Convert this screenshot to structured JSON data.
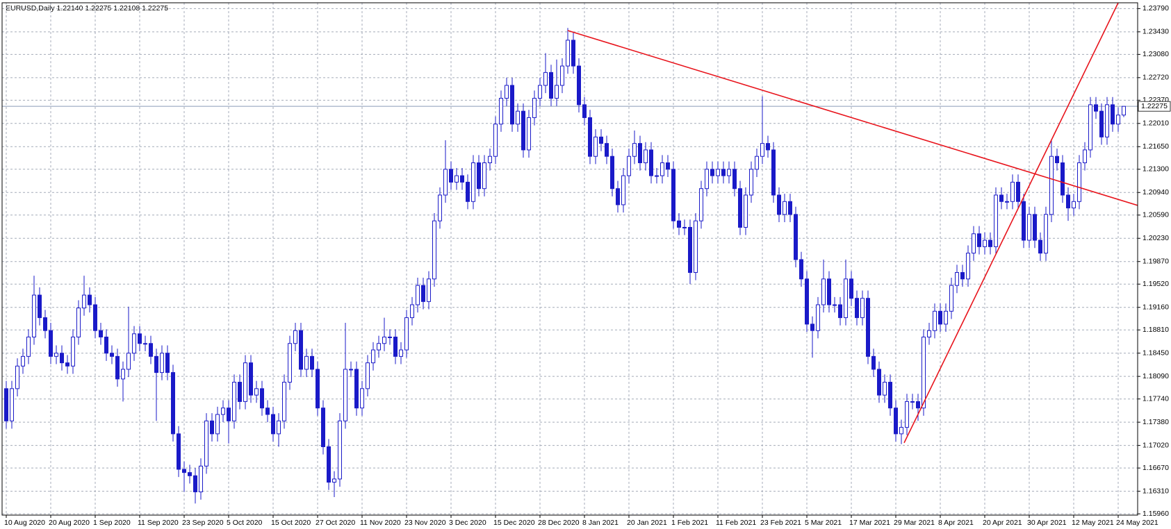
{
  "chart_data": {
    "type": "candlestick",
    "title": "EURUSD,Daily  1.22140 1.22275 1.22108 1.22275",
    "categories": [
      "10 Aug 2020",
      null,
      null,
      null,
      null,
      null,
      null,
      null,
      "20 Aug 2020",
      null,
      null,
      null,
      null,
      null,
      null,
      null,
      "1 Sep 2020",
      null,
      null,
      null,
      null,
      null,
      null,
      null,
      "11 Sep 2020",
      null,
      null,
      null,
      null,
      null,
      null,
      null,
      "23 Sep 2020",
      null,
      null,
      null,
      null,
      null,
      null,
      null,
      "5 Oct 2020",
      null,
      null,
      null,
      null,
      null,
      null,
      null,
      "15 Oct 2020",
      null,
      null,
      null,
      null,
      null,
      null,
      null,
      "27 Oct 2020",
      null,
      null,
      null,
      null,
      null,
      null,
      null,
      "11 Nov 2020",
      null,
      null,
      null,
      null,
      null,
      null,
      null,
      "23 Nov 2020",
      null,
      null,
      null,
      null,
      null,
      null,
      null,
      "3 Dec 2020",
      null,
      null,
      null,
      null,
      null,
      null,
      null,
      "15 Dec 2020",
      null,
      null,
      null,
      null,
      null,
      null,
      null,
      "28 Dec 2020",
      null,
      null,
      null,
      null,
      null,
      null,
      null,
      "8 Jan 2021",
      null,
      null,
      null,
      null,
      null,
      null,
      null,
      "20 Jan 2021",
      null,
      null,
      null,
      null,
      null,
      null,
      null,
      "1 Feb 2021",
      null,
      null,
      null,
      null,
      null,
      null,
      null,
      "11 Feb 2021",
      null,
      null,
      null,
      null,
      null,
      null,
      null,
      "23 Feb 2021",
      null,
      null,
      null,
      null,
      null,
      null,
      null,
      "5 Mar 2021",
      null,
      null,
      null,
      null,
      null,
      null,
      null,
      "17 Mar 2021",
      null,
      null,
      null,
      null,
      null,
      null,
      null,
      "29 Mar 2021",
      null,
      null,
      null,
      null,
      null,
      null,
      null,
      "8 Apr 2021",
      null,
      null,
      null,
      null,
      null,
      null,
      null,
      "20 Apr 2021",
      null,
      null,
      null,
      null,
      null,
      null,
      null,
      "30 Apr 2021",
      null,
      null,
      null,
      null,
      null,
      null,
      null,
      "12 May 2021",
      null,
      null,
      null,
      null,
      null,
      null,
      null,
      "24 May 2021",
      null
    ],
    "open": [
      1.179,
      1.174,
      1.179,
      1.1825,
      1.184,
      1.187,
      1.1935,
      1.19,
      1.188,
      1.184,
      1.1845,
      1.183,
      1.1825,
      1.187,
      1.1915,
      1.1935,
      1.192,
      1.188,
      1.187,
      1.1845,
      1.184,
      1.1805,
      1.182,
      1.1845,
      1.1875,
      1.186,
      1.186,
      1.184,
      1.1815,
      1.1845,
      1.1815,
      1.172,
      1.1665,
      1.166,
      1.1655,
      1.163,
      1.167,
      1.174,
      1.172,
      1.175,
      1.176,
      1.174,
      1.18,
      1.177,
      1.183,
      1.178,
      1.179,
      1.176,
      1.175,
      1.172,
      1.174,
      1.18,
      1.186,
      1.188,
      1.182,
      1.184,
      1.182,
      1.176,
      1.17,
      1.1645,
      1.165,
      1.174,
      1.182,
      1.182,
      1.176,
      1.179,
      1.183,
      1.185,
      1.186,
      1.187,
      1.187,
      1.184,
      1.185,
      1.19,
      1.192,
      1.195,
      1.1925,
      1.196,
      1.205,
      1.209,
      1.213,
      1.211,
      1.212,
      1.211,
      1.208,
      1.214,
      1.21,
      1.214,
      1.215,
      1.22,
      1.224,
      1.226,
      1.22,
      1.222,
      1.216,
      1.221,
      1.224,
      1.226,
      1.228,
      1.224,
      1.226,
      1.229,
      1.233,
      1.229,
      1.223,
      1.221,
      1.215,
      1.218,
      1.217,
      1.215,
      1.21,
      1.2075,
      1.212,
      1.215,
      1.217,
      1.214,
      1.216,
      1.212,
      1.212,
      1.214,
      1.213,
      1.205,
      1.204,
      1.204,
      1.197,
      1.205,
      1.21,
      1.213,
      1.212,
      1.213,
      1.212,
      1.213,
      1.21,
      1.204,
      1.209,
      1.213,
      1.215,
      1.217,
      1.216,
      1.209,
      1.206,
      1.208,
      1.206,
      1.199,
      1.196,
      1.189,
      1.188,
      1.192,
      1.196,
      1.192,
      1.192,
      1.19,
      1.196,
      1.193,
      1.19,
      1.193,
      1.184,
      1.182,
      1.178,
      1.18,
      1.176,
      1.172,
      1.173,
      1.177,
      1.177,
      1.176,
      1.187,
      1.188,
      1.191,
      1.189,
      1.191,
      1.195,
      1.197,
      1.196,
      1.2,
      1.203,
      1.201,
      1.202,
      1.201,
      1.209,
      1.208,
      1.208,
      1.211,
      1.208,
      1.202,
      1.206,
      1.202,
      1.2,
      1.206,
      1.215,
      1.214,
      1.209,
      1.207,
      1.208,
      1.214,
      1.216,
      1.223,
      1.222,
      1.218,
      1.223,
      1.22,
      1.2214
    ],
    "high": [
      1.1802,
      1.1802,
      1.1837,
      1.1852,
      1.1882,
      1.1965,
      1.1947,
      1.1912,
      1.1892,
      1.1857,
      1.1857,
      1.1842,
      1.1882,
      1.1927,
      1.1965,
      1.1947,
      1.1932,
      1.1892,
      1.1882,
      1.1857,
      1.1852,
      1.1832,
      1.1917,
      1.1887,
      1.1887,
      1.1872,
      1.1872,
      1.1852,
      1.1857,
      1.1857,
      1.1827,
      1.1732,
      1.1677,
      1.1672,
      1.1667,
      1.1682,
      1.1752,
      1.1752,
      1.1762,
      1.1772,
      1.1772,
      1.1812,
      1.1812,
      1.1842,
      1.1842,
      1.1802,
      1.1802,
      1.1772,
      1.1762,
      1.1752,
      1.1812,
      1.1872,
      1.1892,
      1.1892,
      1.1852,
      1.1852,
      1.1832,
      1.1772,
      1.1712,
      1.1662,
      1.1752,
      1.1892,
      1.1832,
      1.1832,
      1.1802,
      1.1842,
      1.1862,
      1.1872,
      1.19,
      1.1882,
      1.1882,
      1.1862,
      1.1912,
      1.1932,
      1.1962,
      1.1962,
      1.1972,
      1.2062,
      1.2102,
      1.2175,
      1.2142,
      1.2132,
      1.2132,
      1.2122,
      1.2152,
      1.2152,
      1.2152,
      1.2162,
      1.2212,
      1.2252,
      1.2272,
      1.2272,
      1.2232,
      1.2232,
      1.2222,
      1.2252,
      1.2272,
      1.231,
      1.2292,
      1.23,
      1.2302,
      1.2349,
      1.2342,
      1.2302,
      1.2242,
      1.2222,
      1.2192,
      1.2192,
      1.2182,
      1.2162,
      1.2112,
      1.2132,
      1.2162,
      1.219,
      1.2182,
      1.2172,
      1.2172,
      1.2132,
      1.2152,
      1.2152,
      1.2142,
      1.2062,
      1.2052,
      1.2052,
      1.2062,
      1.2112,
      1.2142,
      1.2142,
      1.2142,
      1.2142,
      1.2142,
      1.2142,
      1.2112,
      1.2102,
      1.2142,
      1.2162,
      1.2243,
      1.2182,
      1.2172,
      1.2102,
      1.2092,
      1.2092,
      1.2072,
      1.2002,
      1.1972,
      1.1902,
      1.1932,
      1.199,
      1.1972,
      1.1932,
      1.1932,
      1.199,
      1.1972,
      1.1942,
      1.1942,
      1.1942,
      1.1852,
      1.1832,
      1.1812,
      1.1812,
      1.1772,
      1.1742,
      1.1782,
      1.1782,
      1.1782,
      1.1882,
      1.1892,
      1.1922,
      1.1922,
      1.1922,
      1.1962,
      1.1982,
      1.1982,
      1.2012,
      1.2042,
      1.2042,
      1.2032,
      1.2032,
      1.2102,
      1.2102,
      1.2092,
      1.2122,
      1.2122,
      1.2092,
      1.2072,
      1.2072,
      1.2032,
      1.2072,
      1.2175,
      1.2162,
      1.2152,
      1.2102,
      1.2092,
      1.2152,
      1.2172,
      1.2242,
      1.2242,
      1.2232,
      1.2242,
      1.2242,
      1.2226,
      1.22275
    ],
    "low": [
      1.1728,
      1.1728,
      1.1778,
      1.1813,
      1.1828,
      1.1858,
      1.1888,
      1.1868,
      1.1828,
      1.1828,
      1.1818,
      1.1813,
      1.1813,
      1.1858,
      1.1903,
      1.1908,
      1.1868,
      1.1858,
      1.1833,
      1.1828,
      1.1793,
      1.177,
      1.1808,
      1.1833,
      1.1848,
      1.1848,
      1.1828,
      1.174,
      1.1803,
      1.1803,
      1.1708,
      1.1653,
      1.163,
      1.1643,
      1.1612,
      1.1618,
      1.1658,
      1.1708,
      1.1708,
      1.1738,
      1.1705,
      1.1728,
      1.1758,
      1.1758,
      1.1768,
      1.1768,
      1.1748,
      1.1738,
      1.1708,
      1.17,
      1.1728,
      1.1788,
      1.1848,
      1.1808,
      1.1808,
      1.1808,
      1.1748,
      1.1688,
      1.1633,
      1.1622,
      1.1638,
      1.1728,
      1.1808,
      1.1748,
      1.1748,
      1.1778,
      1.1818,
      1.1838,
      1.1848,
      1.1858,
      1.1828,
      1.1828,
      1.1838,
      1.1888,
      1.1908,
      1.1913,
      1.1913,
      1.1948,
      1.2038,
      1.2078,
      1.2098,
      1.2098,
      1.2098,
      1.2068,
      1.2068,
      1.2088,
      1.2088,
      1.2128,
      1.2138,
      1.2188,
      1.2228,
      1.2188,
      1.2188,
      1.2148,
      1.2148,
      1.2198,
      1.2228,
      1.2248,
      1.2228,
      1.2228,
      1.2248,
      1.2278,
      1.2278,
      1.2218,
      1.2198,
      1.2138,
      1.2138,
      1.2158,
      1.2138,
      1.2088,
      1.2063,
      1.2063,
      1.2108,
      1.2138,
      1.2128,
      1.2128,
      1.2108,
      1.2108,
      1.2108,
      1.2118,
      1.2038,
      1.2028,
      1.2028,
      1.1952,
      1.1958,
      1.2038,
      1.2088,
      1.2108,
      1.2108,
      1.2108,
      1.2108,
      1.2088,
      1.2028,
      1.2028,
      1.2078,
      1.2118,
      1.2138,
      1.2148,
      1.2078,
      1.2048,
      1.2048,
      1.2048,
      1.1978,
      1.1948,
      1.1878,
      1.1838,
      1.1868,
      1.1908,
      1.1908,
      1.1908,
      1.1888,
      1.1888,
      1.1918,
      1.1888,
      1.1888,
      1.1828,
      1.1808,
      1.1768,
      1.1768,
      1.1748,
      1.1708,
      1.1704,
      1.1718,
      1.1758,
      1.174,
      1.1748,
      1.1858,
      1.1868,
      1.1878,
      1.1878,
      1.1898,
      1.1938,
      1.1948,
      1.1948,
      1.1988,
      1.1998,
      1.1998,
      1.1998,
      1.1998,
      1.2068,
      1.2068,
      1.2068,
      1.2068,
      1.2008,
      1.2008,
      1.2008,
      1.1988,
      1.1988,
      1.2048,
      1.2128,
      1.2078,
      1.205,
      1.2058,
      1.2068,
      1.2128,
      1.2148,
      1.2208,
      1.2168,
      1.2168,
      1.2188,
      1.2188,
      1.22108
    ],
    "close": [
      1.174,
      1.179,
      1.1825,
      1.184,
      1.187,
      1.1935,
      1.19,
      1.188,
      1.184,
      1.1845,
      1.183,
      1.1825,
      1.187,
      1.1915,
      1.1935,
      1.192,
      1.188,
      1.187,
      1.1845,
      1.184,
      1.1805,
      1.182,
      1.1845,
      1.1875,
      1.186,
      1.186,
      1.184,
      1.1815,
      1.1845,
      1.1815,
      1.172,
      1.1665,
      1.166,
      1.1655,
      1.163,
      1.167,
      1.174,
      1.172,
      1.175,
      1.176,
      1.174,
      1.18,
      1.177,
      1.183,
      1.178,
      1.179,
      1.176,
      1.175,
      1.172,
      1.174,
      1.18,
      1.186,
      1.188,
      1.182,
      1.184,
      1.182,
      1.176,
      1.17,
      1.1645,
      1.165,
      1.174,
      1.182,
      1.182,
      1.176,
      1.179,
      1.183,
      1.185,
      1.186,
      1.187,
      1.187,
      1.184,
      1.185,
      1.19,
      1.192,
      1.195,
      1.1925,
      1.196,
      1.205,
      1.209,
      1.213,
      1.211,
      1.212,
      1.211,
      1.208,
      1.214,
      1.21,
      1.214,
      1.215,
      1.22,
      1.224,
      1.226,
      1.22,
      1.222,
      1.216,
      1.221,
      1.224,
      1.226,
      1.228,
      1.224,
      1.226,
      1.229,
      1.233,
      1.229,
      1.223,
      1.221,
      1.215,
      1.218,
      1.217,
      1.215,
      1.21,
      1.2075,
      1.212,
      1.215,
      1.217,
      1.214,
      1.216,
      1.212,
      1.212,
      1.214,
      1.213,
      1.205,
      1.204,
      1.204,
      1.197,
      1.205,
      1.21,
      1.213,
      1.212,
      1.213,
      1.212,
      1.213,
      1.21,
      1.204,
      1.209,
      1.213,
      1.215,
      1.217,
      1.216,
      1.209,
      1.206,
      1.208,
      1.206,
      1.199,
      1.196,
      1.189,
      1.188,
      1.192,
      1.196,
      1.192,
      1.192,
      1.19,
      1.196,
      1.193,
      1.19,
      1.193,
      1.184,
      1.182,
      1.178,
      1.18,
      1.176,
      1.172,
      1.173,
      1.177,
      1.177,
      1.176,
      1.187,
      1.188,
      1.191,
      1.189,
      1.191,
      1.195,
      1.197,
      1.196,
      1.2,
      1.203,
      1.201,
      1.202,
      1.201,
      1.209,
      1.208,
      1.208,
      1.211,
      1.208,
      1.202,
      1.206,
      1.202,
      1.2,
      1.206,
      1.215,
      1.214,
      1.209,
      1.207,
      1.208,
      1.214,
      1.216,
      1.223,
      1.222,
      1.218,
      1.223,
      1.22,
      1.2214,
      1.22275
    ],
    "ylim": [
      1.1594,
      1.2388
    ],
    "yticks": [
      {
        "value": 1.1596,
        "label": "1.15960"
      },
      {
        "value": 1.1631,
        "label": "1.16310"
      },
      {
        "value": 1.1667,
        "label": "1.16670"
      },
      {
        "value": 1.1702,
        "label": "1.17020"
      },
      {
        "value": 1.1738,
        "label": "1.17380"
      },
      {
        "value": 1.1774,
        "label": "1.17740"
      },
      {
        "value": 1.1809,
        "label": "1.18090"
      },
      {
        "value": 1.1845,
        "label": "1.18450"
      },
      {
        "value": 1.1881,
        "label": "1.18810"
      },
      {
        "value": 1.1916,
        "label": "1.19160"
      },
      {
        "value": 1.1952,
        "label": "1.19520"
      },
      {
        "value": 1.1987,
        "label": "1.19870"
      },
      {
        "value": 1.2023,
        "label": "1.20230"
      },
      {
        "value": 1.2059,
        "label": "1.20590"
      },
      {
        "value": 1.2094,
        "label": "1.20940"
      },
      {
        "value": 1.213,
        "label": "1.21300"
      },
      {
        "value": 1.2165,
        "label": "1.21650"
      },
      {
        "value": 1.2201,
        "label": "1.22010"
      },
      {
        "value": 1.2237,
        "label": "1.22370"
      },
      {
        "value": 1.2272,
        "label": "1.22720"
      },
      {
        "value": 1.2308,
        "label": "1.23080"
      },
      {
        "value": 1.2343,
        "label": "1.23430"
      },
      {
        "value": 1.2379,
        "label": "1.23790"
      }
    ],
    "last_price": {
      "value": 1.22275,
      "label": "1.22275"
    },
    "trendlines": [
      {
        "x": [
          101,
          203.5
        ],
        "y": [
          1.2345,
          1.2074
        ]
      },
      {
        "x": [
          161.5,
          200
        ],
        "y": [
          1.1706,
          1.2388
        ]
      }
    ],
    "grid": true,
    "colors": {
      "up": "#ffffff",
      "down": "#1a1ac8",
      "outline": "#1a1ac8",
      "trendline": "#e8141c",
      "grid": "#a4abb8",
      "last_price": "#8a9ab8"
    }
  }
}
